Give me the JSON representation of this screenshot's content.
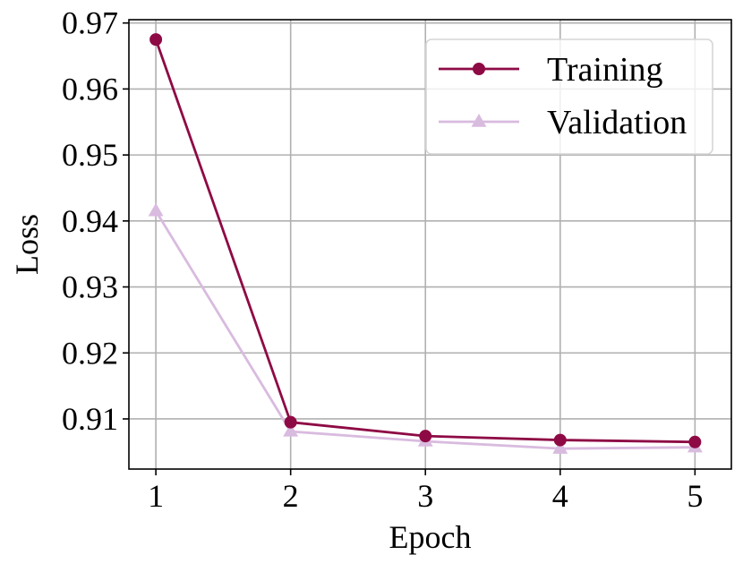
{
  "chart_data": {
    "type": "line",
    "title": "",
    "xlabel": "Epoch",
    "ylabel": "Loss",
    "x": [
      1,
      2,
      3,
      4,
      5
    ],
    "xticks": [
      "1",
      "2",
      "3",
      "4",
      "5"
    ],
    "yticks": [
      "0.91",
      "0.92",
      "0.93",
      "0.94",
      "0.95",
      "0.96",
      "0.97"
    ],
    "xlim": [
      0.8,
      5.27
    ],
    "ylim": [
      0.9024,
      0.9705
    ],
    "grid": true,
    "legend_position": "top-right",
    "series": [
      {
        "name": "Training",
        "values": [
          0.9675,
          0.9095,
          0.9074,
          0.9068,
          0.9065
        ],
        "color": "#8e0a45",
        "marker": "circle"
      },
      {
        "name": "Validation",
        "values": [
          0.9415,
          0.9081,
          0.9066,
          0.9055,
          0.9057
        ],
        "color": "#d9bbdf",
        "marker": "triangle"
      }
    ]
  }
}
